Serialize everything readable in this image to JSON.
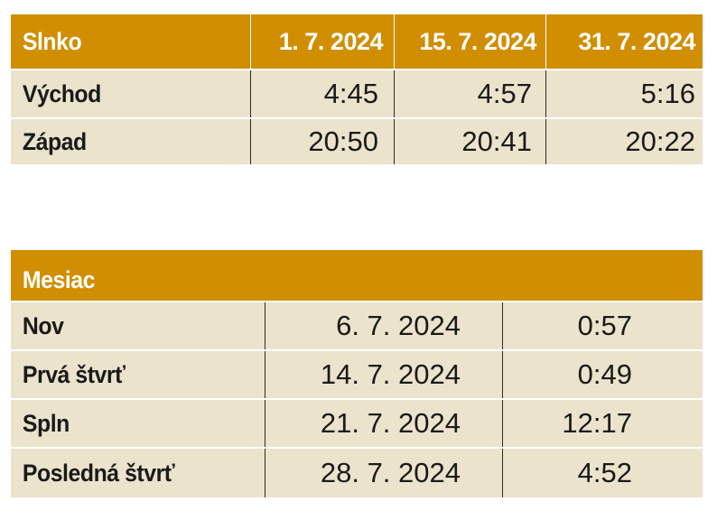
{
  "sun": {
    "title": "Slnko",
    "dates": [
      "1. 7. 2024",
      "15. 7. 2024",
      "31. 7. 2024"
    ],
    "rows": [
      {
        "label": "Východ",
        "values": [
          "4:45",
          "4:57",
          "5:16"
        ]
      },
      {
        "label": "Západ",
        "values": [
          "20:50",
          "20:41",
          "20:22"
        ]
      }
    ]
  },
  "moon": {
    "title": "Mesiac",
    "rows": [
      {
        "label": "Nov",
        "date": "6. 7. 2024",
        "time": "0:57"
      },
      {
        "label": "Prvá štvrť",
        "date": "14. 7. 2024",
        "time": "0:49"
      },
      {
        "label": "Spln",
        "date": "21. 7. 2024",
        "time": "12:17"
      },
      {
        "label": "Posledná štvrť",
        "date": "28. 7. 2024",
        "time": "4:52"
      }
    ]
  },
  "colors": {
    "header": "#d08e00",
    "row": "#ebe3cc",
    "header_text": "#ffffff"
  }
}
